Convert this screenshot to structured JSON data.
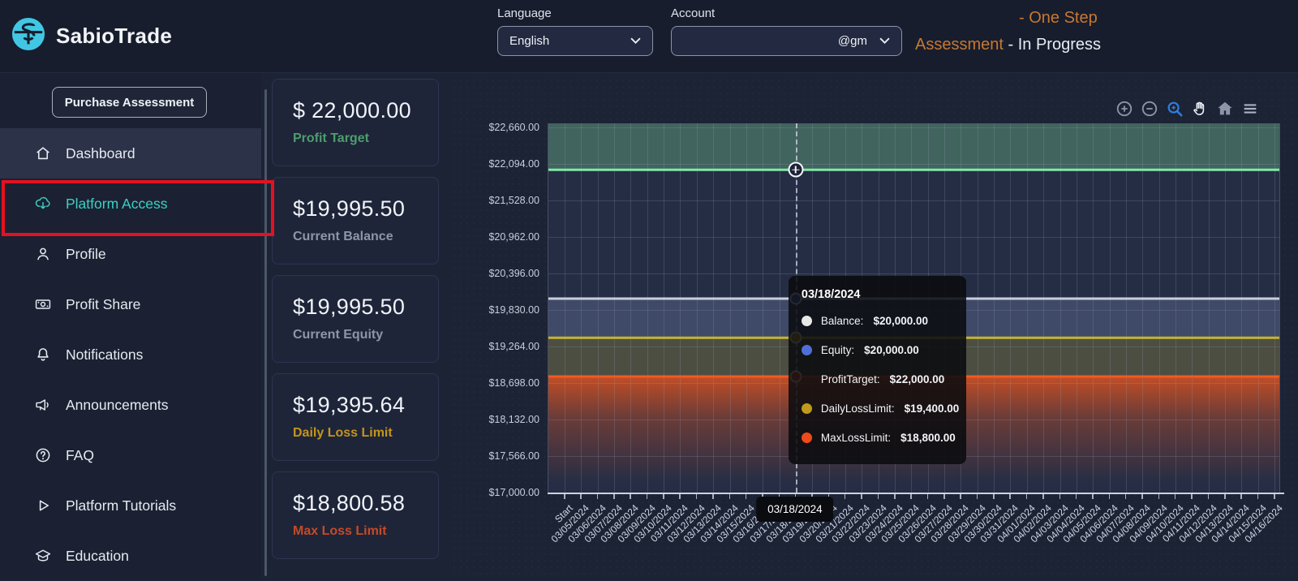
{
  "header": {
    "brand": "SabioTrade",
    "language_label": "Language",
    "language_value": "English",
    "account_label": "Account",
    "account_value": "@gm",
    "status": {
      "line1_orange": "- One Step",
      "line2_orange": "Assessment",
      "line2_rest": "- In Progress",
      "accent_color": "#c9782f"
    }
  },
  "sidebar": {
    "purchase_button": "Purchase Assessment",
    "items": [
      {
        "label": "Dashboard",
        "icon": "home",
        "active": true,
        "teal": false
      },
      {
        "label": "Platform Access",
        "icon": "cloud-download",
        "active": false,
        "teal": true
      },
      {
        "label": "Profile",
        "icon": "person",
        "active": false,
        "teal": false
      },
      {
        "label": "Profit Share",
        "icon": "banknote",
        "active": false,
        "teal": false
      },
      {
        "label": "Notifications",
        "icon": "bell",
        "active": false,
        "teal": false
      },
      {
        "label": "Announcements",
        "icon": "megaphone",
        "active": false,
        "teal": false
      },
      {
        "label": "FAQ",
        "icon": "question-circle",
        "active": false,
        "teal": false
      },
      {
        "label": "Platform Tutorials",
        "icon": "play",
        "active": false,
        "teal": false
      },
      {
        "label": "Education",
        "icon": "graduation-cap",
        "active": false,
        "teal": false
      }
    ]
  },
  "stats": [
    {
      "value": "$ 22,000.00",
      "label": "Profit Target",
      "label_color": "#4d9e6d"
    },
    {
      "value": "$19,995.50",
      "label": "Current Balance",
      "label_color": "#8d96a8"
    },
    {
      "value": "$19,995.50",
      "label": "Current Equity",
      "label_color": "#8d96a8"
    },
    {
      "value": "$19,395.64",
      "label": "Daily Loss Limit",
      "label_color": "#c3951c"
    },
    {
      "value": "$18,800.58",
      "label": "Max Loss Limit",
      "label_color": "#c64a26"
    }
  ],
  "chart_data": {
    "type": "line",
    "title": "",
    "xlabel": "",
    "ylabel": "",
    "grid": true,
    "ylim": [
      17000,
      22723
    ],
    "y_ticks": [
      "$22,660.00",
      "$22,094.00",
      "$21,528.00",
      "$20,962.00",
      "$20,396.00",
      "$19,830.00",
      "$19,264.00",
      "$18,698.00",
      "$18,132.00",
      "$17,566.00",
      "$17,000.00"
    ],
    "x": [
      "Start",
      "03/05/2024",
      "03/06/2024",
      "03/07/2024",
      "03/08/2024",
      "03/09/2024",
      "03/10/2024",
      "03/11/2024",
      "03/12/2024",
      "03/13/2024",
      "03/14/2024",
      "03/15/2024",
      "03/16/2024",
      "03/17/2024",
      "03/18/2024",
      "03/19/2024",
      "03/20/2024",
      "03/21/2024",
      "03/22/2024",
      "03/23/2024",
      "03/24/2024",
      "03/25/2024",
      "03/26/2024",
      "03/27/2024",
      "03/28/2024",
      "03/29/2024",
      "03/30/2024",
      "03/31/2024",
      "04/01/2024",
      "04/02/2024",
      "04/03/2024",
      "04/04/2024",
      "04/05/2024",
      "04/06/2024",
      "04/07/2024",
      "04/08/2024",
      "04/09/2024",
      "04/10/2024",
      "04/11/2024",
      "04/12/2024",
      "04/13/2024",
      "04/14/2024",
      "04/15/2024",
      "04/16/2024"
    ],
    "series": [
      {
        "name": "Balance",
        "value": 20000,
        "color": "#c8cedd"
      },
      {
        "name": "Equity",
        "value": 20000,
        "color": "#4f6fd8"
      },
      {
        "name": "ProfitTarget",
        "value": 22000,
        "color": "#82e8a6"
      },
      {
        "name": "DailyLossLimit",
        "value": 19400,
        "color": "#c8b42c"
      },
      {
        "name": "MaxLossLimit",
        "value": 18800,
        "color": "#f05a22"
      }
    ],
    "hover": {
      "date": "03/18/2024",
      "rows": [
        {
          "dot": "#e8e8e8",
          "label": "Balance:",
          "value": "$20,000.00"
        },
        {
          "dot": "#4f6fd8",
          "label": "Equity:",
          "value": "$20,000.00"
        },
        {
          "dot": null,
          "label": "ProfitTarget:",
          "value": "$22,000.00"
        },
        {
          "dot": "#c09a1a",
          "label": "DailyLossLimit:",
          "value": "$19,400.00"
        },
        {
          "dot": "#f04a1a",
          "label": "MaxLossLimit:",
          "value": "$18,800.00"
        }
      ]
    },
    "modebar": [
      "zoom-in",
      "zoom-out",
      "box-zoom",
      "pan",
      "reset-home",
      "menu"
    ]
  }
}
